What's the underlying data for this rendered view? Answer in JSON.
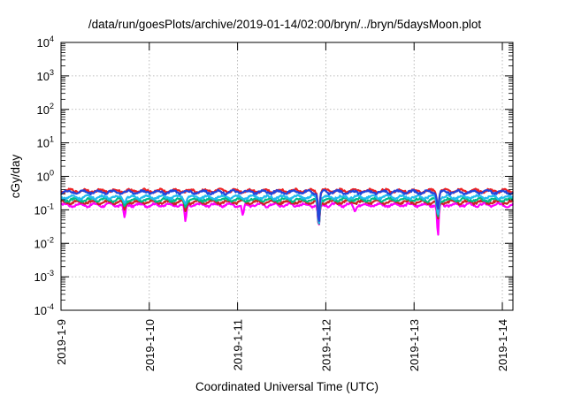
{
  "chart_data": {
    "type": "line",
    "title": "/data/run/goesPlots/archive/2019-01-14/02:00/bryn/../bryn/5daysMoon.plot",
    "xlabel": "Coordinated Universal Time (UTC)",
    "ylabel": "cGy/day",
    "yscale": "log",
    "ylim": [
      0.0001,
      10000
    ],
    "xlim": [
      0,
      5.12
    ],
    "x_unit": "days since 2019-1-9 00:00 UTC",
    "x_ticks": [
      {
        "value": 0,
        "label": "2019-1-9"
      },
      {
        "value": 1,
        "label": "2019-1-10"
      },
      {
        "value": 2,
        "label": "2019-1-11"
      },
      {
        "value": 3,
        "label": "2019-1-12"
      },
      {
        "value": 4,
        "label": "2019-1-13"
      },
      {
        "value": 5,
        "label": "2019-1-14"
      }
    ],
    "y_ticks": [
      {
        "exp": -4,
        "base": "10",
        "sup": "-4"
      },
      {
        "exp": -3,
        "base": "10",
        "sup": "-3"
      },
      {
        "exp": -2,
        "base": "10",
        "sup": "-2"
      },
      {
        "exp": -1,
        "base": "10",
        "sup": "-1"
      },
      {
        "exp": 0,
        "base": "10",
        "sup": "0"
      },
      {
        "exp": 1,
        "base": "10",
        "sup": "1"
      },
      {
        "exp": 2,
        "base": "10",
        "sup": "2"
      },
      {
        "exp": 3,
        "base": "10",
        "sup": "3"
      },
      {
        "exp": 4,
        "base": "10",
        "sup": "4"
      }
    ],
    "grid": true,
    "series": [
      {
        "color": "#ff00ff",
        "base": 0.14,
        "dips": [
          [
            0.72,
            0.06
          ],
          [
            1.41,
            0.045
          ],
          [
            2.06,
            0.07
          ],
          [
            2.92,
            0.03
          ],
          [
            3.33,
            0.09
          ],
          [
            4.27,
            0.014
          ]
        ]
      },
      {
        "color": "#cc2222",
        "base": 0.17,
        "dips": [
          [
            0.72,
            0.1
          ],
          [
            1.41,
            0.09
          ],
          [
            2.92,
            0.03
          ],
          [
            4.27,
            0.05
          ]
        ]
      },
      {
        "color": "#00bb88",
        "base": 0.2,
        "dips": [
          [
            0.72,
            0.13
          ],
          [
            1.41,
            0.12
          ],
          [
            2.92,
            0.03
          ],
          [
            4.27,
            0.06
          ]
        ]
      },
      {
        "color": "#22bbee",
        "base": 0.24,
        "dips": [
          [
            0.72,
            0.16
          ],
          [
            1.41,
            0.15
          ],
          [
            2.92,
            0.03
          ],
          [
            4.27,
            0.07
          ]
        ]
      },
      {
        "color": "#ee2222",
        "base": 0.37,
        "dips": [
          [
            2.92,
            0.03
          ],
          [
            4.27,
            0.1
          ]
        ]
      },
      {
        "color": "#2244dd",
        "base": 0.34,
        "dips": [
          [
            2.92,
            0.03
          ],
          [
            4.27,
            0.1
          ]
        ]
      }
    ]
  }
}
